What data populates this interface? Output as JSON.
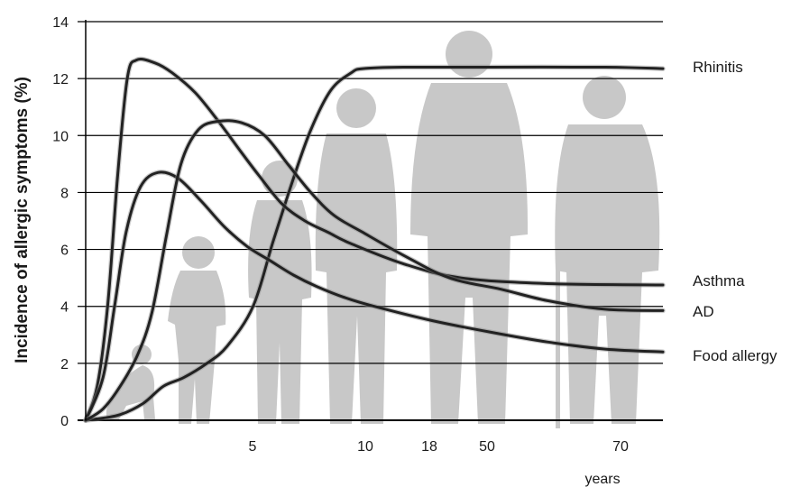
{
  "chart_data": {
    "type": "line",
    "ylabel": "Incidence of allergic symptoms (%)",
    "xlabel": "years",
    "ylim": [
      0,
      14
    ],
    "y_ticks": [
      "0",
      "2",
      "4",
      "6",
      "8",
      "10",
      "12",
      "14"
    ],
    "x_ticks": [
      "5",
      "10",
      "18",
      "50",
      "70"
    ],
    "grid": "horizontal",
    "colors": {
      "line": "#222222",
      "grid": "#000000",
      "silhouette": "#c8c8c8",
      "text": "#1a1a1a"
    },
    "series": [
      {
        "name": "Rhinitis",
        "points": [
          [
            0,
            0
          ],
          [
            0.2,
            0.05
          ],
          [
            0.6,
            0.2
          ],
          [
            1.0,
            0.6
          ],
          [
            1.35,
            1.2
          ],
          [
            1.7,
            1.5
          ],
          [
            2.1,
            2.0
          ],
          [
            2.45,
            2.6
          ],
          [
            2.9,
            4.0
          ],
          [
            3.25,
            6.3
          ],
          [
            3.6,
            8.5
          ],
          [
            3.9,
            10.2
          ],
          [
            4.25,
            11.6
          ],
          [
            4.6,
            12.2
          ],
          [
            4.8,
            12.35
          ],
          [
            5.5,
            12.4
          ],
          [
            7.0,
            12.4
          ],
          [
            9.0,
            12.4
          ],
          [
            10.0,
            12.35
          ]
        ]
      },
      {
        "name": "Asthma",
        "points": [
          [
            0,
            0
          ],
          [
            0.2,
            1.2
          ],
          [
            0.38,
            4.0
          ],
          [
            0.55,
            8.5
          ],
          [
            0.72,
            12.0
          ],
          [
            0.88,
            12.65
          ],
          [
            1.2,
            12.55
          ],
          [
            1.5,
            12.2
          ],
          [
            1.9,
            11.5
          ],
          [
            2.3,
            10.5
          ],
          [
            2.7,
            9.4
          ],
          [
            3.0,
            8.6
          ],
          [
            3.4,
            7.6
          ],
          [
            3.8,
            7.0
          ],
          [
            4.2,
            6.6
          ],
          [
            4.6,
            6.2
          ],
          [
            5.5,
            5.5
          ],
          [
            6.5,
            5.0
          ],
          [
            8.0,
            4.8
          ],
          [
            10.0,
            4.75
          ]
        ]
      },
      {
        "name": "AD",
        "points": [
          [
            0,
            0
          ],
          [
            0.3,
            1.5
          ],
          [
            0.5,
            4.0
          ],
          [
            0.7,
            6.6
          ],
          [
            0.95,
            8.2
          ],
          [
            1.25,
            8.7
          ],
          [
            1.6,
            8.5
          ],
          [
            2.0,
            7.7
          ],
          [
            2.4,
            6.8
          ],
          [
            2.8,
            6.1
          ],
          [
            3.2,
            5.6
          ],
          [
            3.6,
            5.1
          ],
          [
            4.0,
            4.7
          ],
          [
            4.5,
            4.3
          ],
          [
            5.0,
            4.0
          ],
          [
            6.0,
            3.5
          ],
          [
            7.0,
            3.1
          ],
          [
            8.0,
            2.75
          ],
          [
            9.0,
            2.5
          ],
          [
            10.0,
            2.4
          ]
        ]
      },
      {
        "name": "Food allergy",
        "points": [
          [
            0,
            0
          ],
          [
            0.3,
            0.4
          ],
          [
            0.6,
            1.2
          ],
          [
            0.9,
            2.3
          ],
          [
            1.15,
            3.8
          ],
          [
            1.4,
            6.5
          ],
          [
            1.65,
            9.0
          ],
          [
            1.95,
            10.2
          ],
          [
            2.3,
            10.5
          ],
          [
            2.7,
            10.45
          ],
          [
            3.1,
            10.0
          ],
          [
            3.5,
            9.0
          ],
          [
            3.9,
            8.0
          ],
          [
            4.3,
            7.2
          ],
          [
            4.8,
            6.6
          ],
          [
            5.5,
            5.8
          ],
          [
            6.3,
            5.0
          ],
          [
            7.2,
            4.6
          ],
          [
            8.0,
            4.2
          ],
          [
            9.0,
            3.9
          ],
          [
            10.0,
            3.85
          ]
        ]
      }
    ]
  }
}
